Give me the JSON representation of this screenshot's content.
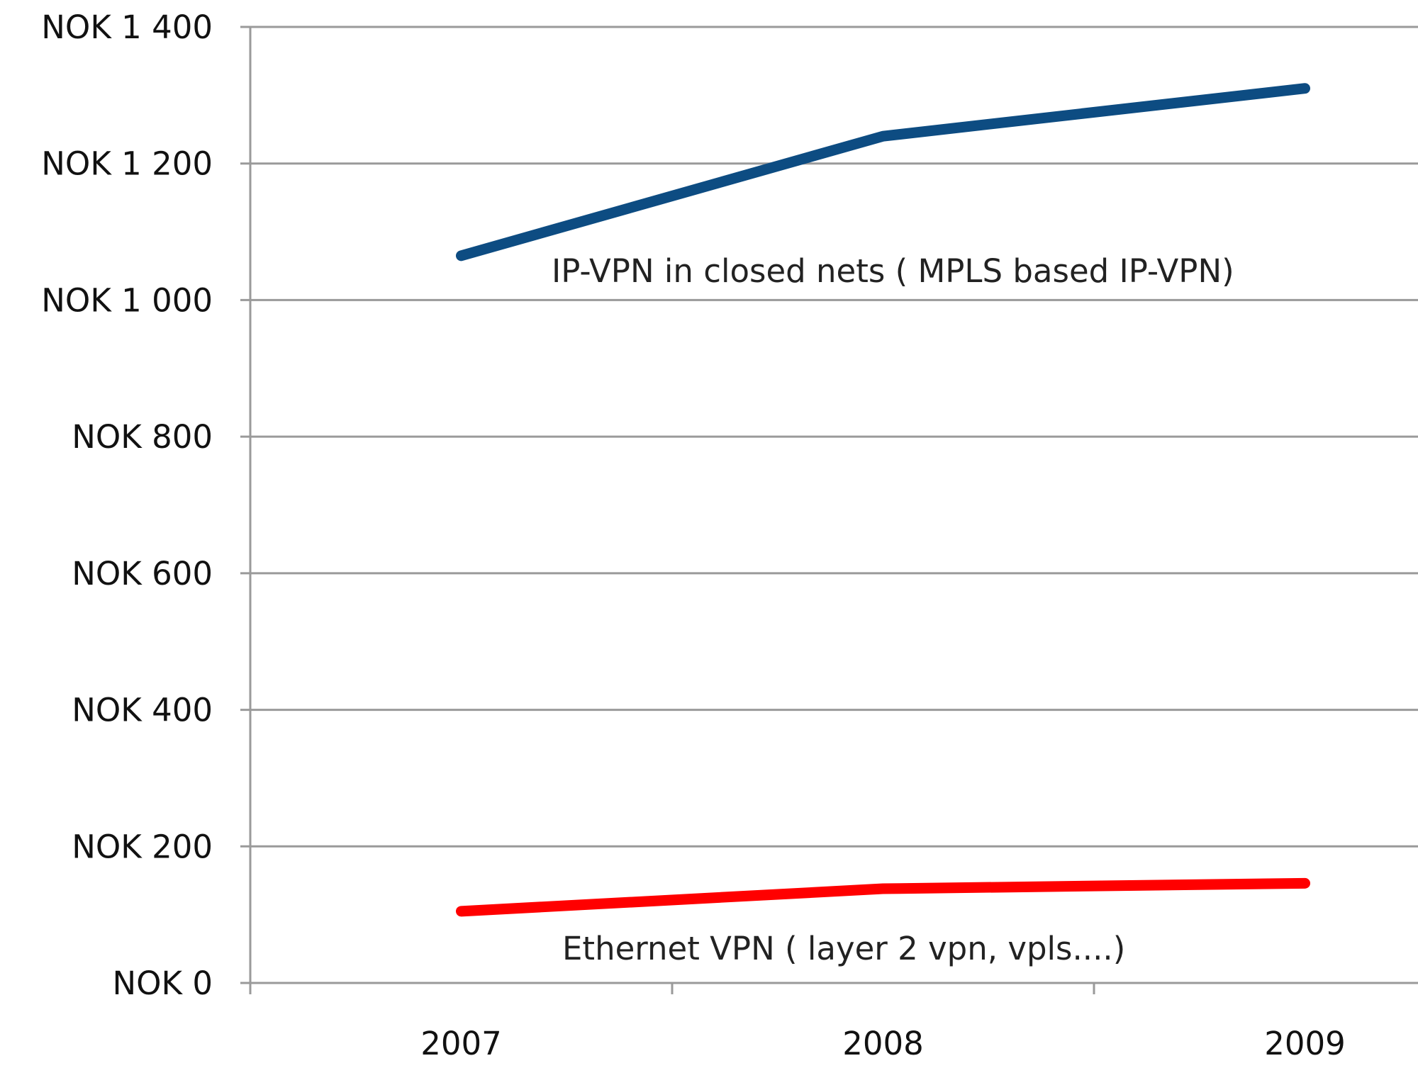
{
  "chart_data": {
    "type": "line",
    "title": "",
    "xlabel": "",
    "ylabel": "",
    "categories": [
      "2007",
      "2008",
      "2009"
    ],
    "ylim": [
      0,
      1400
    ],
    "yticks": [
      0,
      200,
      400,
      600,
      800,
      1000,
      1200,
      1400
    ],
    "ytick_labels": [
      "NOK 0",
      "NOK 200",
      "NOK 400",
      "NOK 600",
      "NOK 800",
      "NOK 1 000",
      "NOK 1 200",
      "NOK 1 400"
    ],
    "grid": true,
    "legend": "none (inline series labels)",
    "series": [
      {
        "name": "IP-VPN in closed nets ( MPLS based IP-VPN)",
        "values": [
          1065,
          1240,
          1310
        ],
        "color": "#0d4c82"
      },
      {
        "name": "Ethernet VPN ( layer 2 vpn, vpls....)",
        "values": [
          105,
          138,
          146
        ],
        "color": "#ff0000"
      }
    ]
  }
}
